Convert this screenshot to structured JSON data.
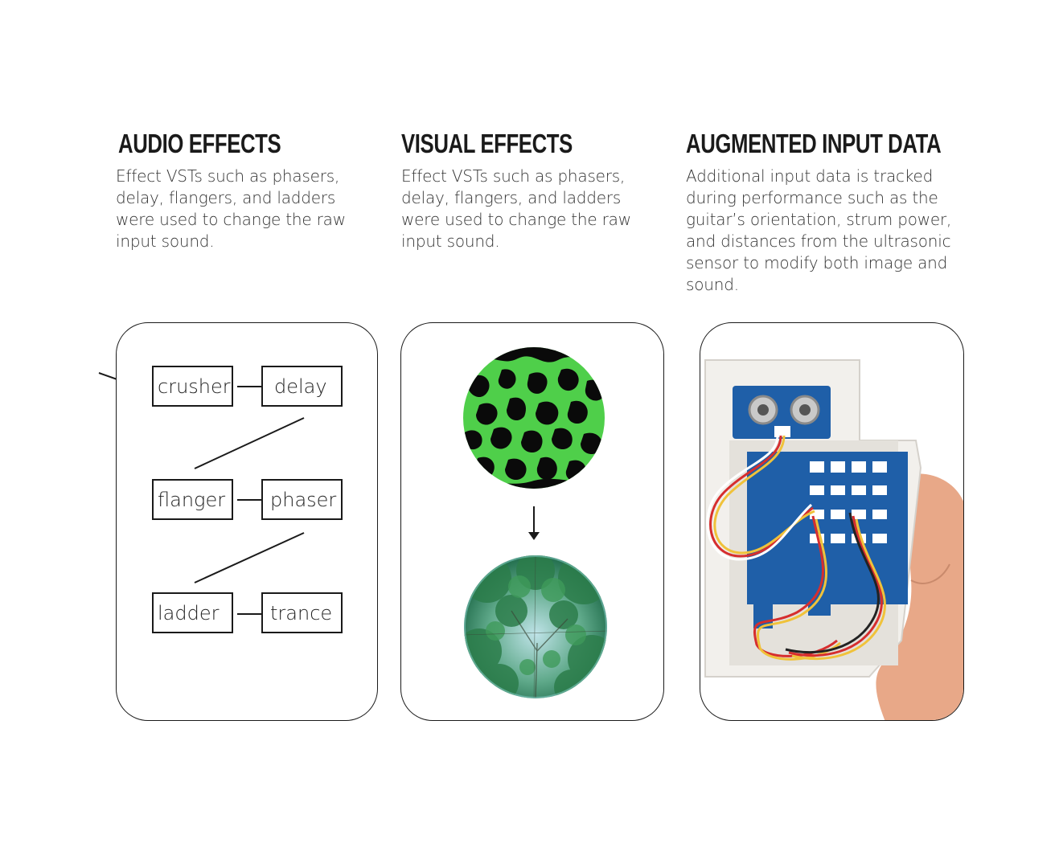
{
  "columns": [
    {
      "heading": "AUDIO EFFECTS",
      "body": "Effect VSTs such as phasers, delay, flangers, and ladders were used to change the raw input sound."
    },
    {
      "heading": "VISUAL EFFECTS",
      "body": "Effect VSTs such as phasers, delay, flangers, and ladders were used to change the raw input sound."
    },
    {
      "heading": "AUGMENTED INPUT DATA",
      "body": "Additional input data is tracked during performance such as the guitar’s orientation, strum power, and distances from the ultrasonic sensor to modify both image and sound."
    }
  ],
  "audio_chain": {
    "nodes": [
      "crusher",
      "delay",
      "flanger",
      "phaser",
      "ladder",
      "trance"
    ]
  },
  "visual": {
    "top_image": "green-black-pattern-circle",
    "bottom_image": "tree-canopy-circle",
    "arrow": "down-arrow-icon"
  },
  "input_device": {
    "image": "handheld-sensor-box-photo"
  },
  "colors": {
    "pattern_green": "#4fcf4a",
    "pattern_black": "#0a0a0a",
    "pcb_blue": "#1f5fa8",
    "enclosure": "#f2f0ec",
    "skin": "#e8a888"
  }
}
